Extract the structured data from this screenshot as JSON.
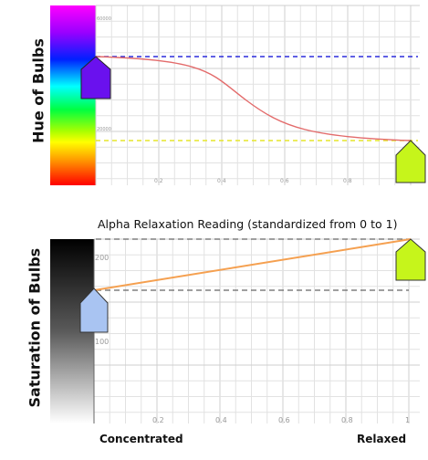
{
  "top_panel": {
    "ylabel": "Hue of Bulbs",
    "y_ticks": [
      "60000",
      "20000"
    ],
    "x_ticks": [
      "0.2",
      "0.4",
      "0.6",
      "0.8",
      "1"
    ],
    "colors": {
      "curve": "#e36b6b",
      "top_line": "#2b2bdc",
      "bottom_line": "#e6e629",
      "left_marker": "#6a11ee",
      "right_marker": "#c6f51b"
    }
  },
  "middle_title": "Alpha Relaxation Reading (standardized from 0 to 1)",
  "bottom_panel": {
    "ylabel": "Saturation of Bulbs",
    "y_ticks": [
      "200",
      "100"
    ],
    "x_ticks": [
      "0.2",
      "0.4",
      "0.6",
      "0.8",
      "1"
    ],
    "colors": {
      "line": "#f5a050",
      "dashes": "#666666",
      "left_marker": "#a9c4f2",
      "right_marker": "#c6f51b"
    }
  },
  "x_labels": {
    "left": "Concentrated",
    "right": "Relaxed"
  }
}
